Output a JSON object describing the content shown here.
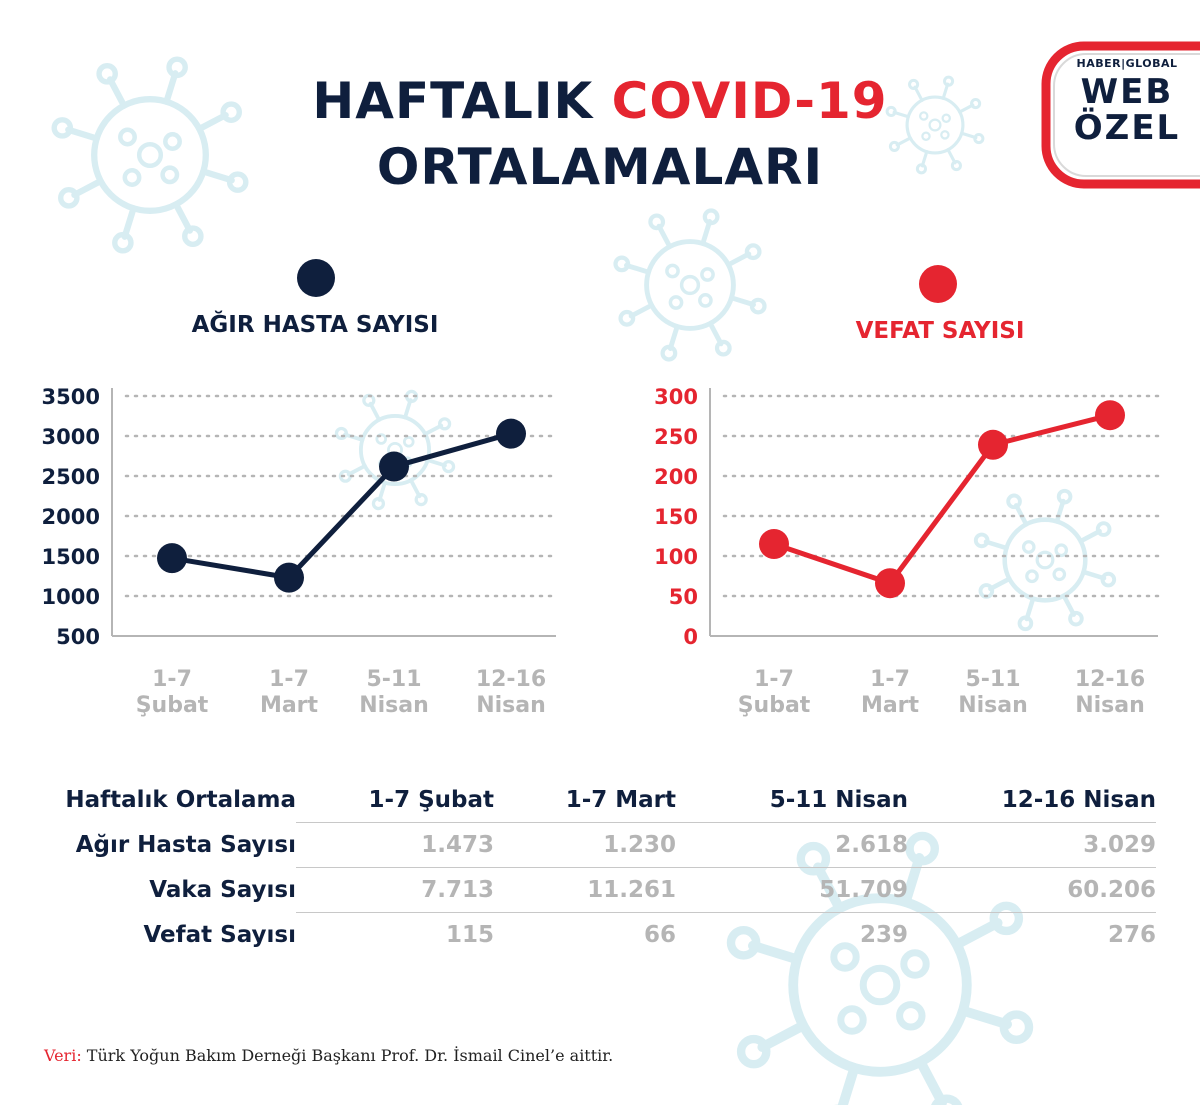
{
  "title": {
    "line1_prefix": "HAFTALIK ",
    "line1_highlight": "COVID-19",
    "line2": "ORTALAMALARI"
  },
  "badge": {
    "top": "HABER|GLOBAL",
    "line1": "WEB",
    "line2": "ÖZEL"
  },
  "colors": {
    "navy": "#0f1f3d",
    "red": "#e52530",
    "grey": "#b5b5b5",
    "virus": "#d6ecf1"
  },
  "chart_data": [
    {
      "type": "line",
      "title": "AĞIR HASTA SAYISI",
      "color": "#0f1f3d",
      "categories": [
        [
          "1-7",
          "Şubat"
        ],
        [
          "1-7",
          "Mart"
        ],
        [
          "5-11",
          "Nisan"
        ],
        [
          "12-16",
          "Nisan"
        ]
      ],
      "yticks": [
        "3500",
        "3000",
        "2500",
        "2000",
        "1500",
        "1000",
        "500"
      ],
      "ylim": [
        500,
        3500
      ],
      "values": [
        1473,
        1230,
        2618,
        3029
      ],
      "grid": true
    },
    {
      "type": "line",
      "title": "VEFAT SAYISI",
      "color": "#e52530",
      "categories": [
        [
          "1-7",
          "Şubat"
        ],
        [
          "1-7",
          "Mart"
        ],
        [
          "5-11",
          "Nisan"
        ],
        [
          "12-16",
          "Nisan"
        ]
      ],
      "yticks": [
        "300",
        "250",
        "200",
        "150",
        "100",
        "50",
        "0"
      ],
      "ylim": [
        0,
        300
      ],
      "values": [
        115,
        66,
        239,
        276
      ],
      "grid": true
    }
  ],
  "table": {
    "header": [
      "Haftalık Ortalama",
      "1-7 Şubat",
      "1-7 Mart",
      "5-11 Nisan",
      "12-16 Nisan"
    ],
    "rows": [
      {
        "label": "Ağır Hasta Sayısı",
        "values": [
          "1.473",
          "1.230",
          "2.618",
          "3.029"
        ]
      },
      {
        "label": "Vaka Sayısı",
        "values": [
          "7.713",
          "11.261",
          "51.709",
          "60.206"
        ]
      },
      {
        "label": "Vefat Sayısı",
        "values": [
          "115",
          "66",
          "239",
          "276"
        ]
      }
    ]
  },
  "source": {
    "label": "Veri:",
    "text": " Türk Yoğun Bakım Derneği Başkanı Prof. Dr. İsmail Cinel’e aittir."
  }
}
